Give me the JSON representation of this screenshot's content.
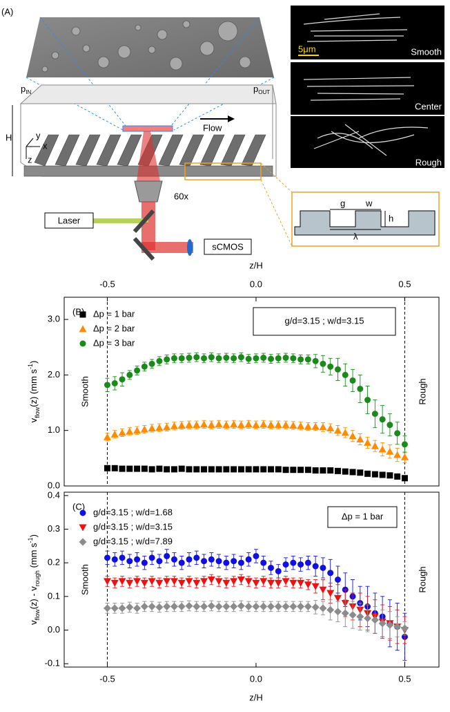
{
  "diagram": {
    "panel": "(A)",
    "p_in": {
      "main": "p",
      "sub": "IN"
    },
    "p_out": {
      "main": "p",
      "sub": "OUT"
    },
    "height": "H",
    "axes": {
      "y": "y",
      "x": "x",
      "z": "z"
    },
    "flow": "Flow",
    "objective": "60x",
    "laser": "Laser",
    "camera": "sCMOS",
    "scale": "5μm",
    "images": [
      "Smooth",
      "Center",
      "Rough"
    ],
    "inset": {
      "g": "g",
      "w": "w",
      "h": "h",
      "lambda": "λ"
    }
  },
  "chart_data": [
    {
      "type": "scatter",
      "panel": "(B)",
      "xlabel": "z/H",
      "xaxis_position": "top",
      "ylabel": [
        {
          "text": "v"
        },
        {
          "text": "flow",
          "sub": true
        },
        {
          "text": "(z)   (mm s"
        },
        {
          "text": "-1",
          "sup": true
        },
        {
          "text": ")"
        }
      ],
      "xlim": [
        -0.645,
        0.615
      ],
      "xticks": [
        -0.5,
        {
          "value": 0,
          "label": "0.0"
        },
        0.5
      ],
      "ylim": [
        0,
        3.4
      ],
      "yticks": [
        {
          "value": 0,
          "label": "0.0"
        },
        {
          "value": 1,
          "label": "1.0"
        },
        {
          "value": 2,
          "label": "2.0"
        },
        {
          "value": 3,
          "label": "3.0"
        }
      ],
      "vlines": [
        -0.5,
        0.5
      ],
      "annotations": [
        "Smooth",
        "Rough"
      ],
      "legend_box": "g/d=3.15 ; w/d=3.15",
      "x": [
        -0.5,
        -0.475,
        -0.45,
        -0.425,
        -0.4,
        -0.375,
        -0.35,
        -0.325,
        -0.3,
        -0.275,
        -0.25,
        -0.225,
        -0.2,
        -0.175,
        -0.15,
        -0.125,
        -0.1,
        -0.075,
        -0.05,
        -0.025,
        0,
        0.025,
        0.05,
        0.075,
        0.1,
        0.125,
        0.15,
        0.175,
        0.2,
        0.225,
        0.25,
        0.275,
        0.3,
        0.325,
        0.35,
        0.375,
        0.4,
        0.425,
        0.45,
        0.475,
        0.5
      ],
      "series": [
        {
          "name": "Δp = 1 bar",
          "color": "#000000",
          "marker": "square",
          "values": [
            0.32,
            0.32,
            0.31,
            0.31,
            0.31,
            0.31,
            0.3,
            0.31,
            0.3,
            0.3,
            0.31,
            0.3,
            0.3,
            0.3,
            0.3,
            0.3,
            0.3,
            0.3,
            0.3,
            0.3,
            0.3,
            0.3,
            0.3,
            0.3,
            0.29,
            0.29,
            0.29,
            0.29,
            0.28,
            0.28,
            0.28,
            0.27,
            0.26,
            0.25,
            0.24,
            0.22,
            0.21,
            0.2,
            0.19,
            0.17,
            0.14
          ]
        },
        {
          "name": "Δp = 2 bar",
          "color": "#ff8c00",
          "marker": "triangle-up",
          "values": [
            0.88,
            0.93,
            0.96,
            0.98,
            1.0,
            1.02,
            1.04,
            1.05,
            1.06,
            1.08,
            1.09,
            1.1,
            1.1,
            1.11,
            1.1,
            1.11,
            1.1,
            1.11,
            1.1,
            1.11,
            1.1,
            1.11,
            1.1,
            1.1,
            1.1,
            1.09,
            1.08,
            1.07,
            1.07,
            1.06,
            1.04,
            1.0,
            0.96,
            0.9,
            0.84,
            0.78,
            0.72,
            0.66,
            0.62,
            0.56,
            0.52
          ],
          "errors": [
            0.07,
            0.07,
            0.07,
            0.07,
            0.07,
            0.07,
            0.07,
            0.07,
            0.07,
            0.07,
            0.07,
            0.07,
            0.07,
            0.07,
            0.07,
            0.07,
            0.07,
            0.07,
            0.07,
            0.07,
            0.07,
            0.07,
            0.07,
            0.07,
            0.07,
            0.07,
            0.07,
            0.07,
            0.07,
            0.08,
            0.08,
            0.09,
            0.09,
            0.1,
            0.1,
            0.1,
            0.1,
            0.12,
            0.12,
            0.12,
            0.1
          ]
        },
        {
          "name": "Δp = 3 bar",
          "color": "#1a8a1a",
          "marker": "circle",
          "values": [
            1.82,
            1.85,
            1.92,
            2.0,
            2.08,
            2.15,
            2.2,
            2.25,
            2.28,
            2.3,
            2.3,
            2.31,
            2.32,
            2.3,
            2.32,
            2.3,
            2.31,
            2.3,
            2.32,
            2.29,
            2.3,
            2.31,
            2.29,
            2.3,
            2.31,
            2.3,
            2.28,
            2.28,
            2.25,
            2.2,
            2.15,
            2.1,
            2.0,
            1.9,
            1.75,
            1.55,
            1.3,
            1.2,
            1.1,
            0.95,
            0.75
          ],
          "errors": [
            0.12,
            0.12,
            0.12,
            0.08,
            0.08,
            0.08,
            0.08,
            0.08,
            0.08,
            0.08,
            0.08,
            0.08,
            0.08,
            0.08,
            0.08,
            0.08,
            0.08,
            0.08,
            0.08,
            0.08,
            0.08,
            0.08,
            0.08,
            0.08,
            0.08,
            0.08,
            0.08,
            0.08,
            0.12,
            0.15,
            0.15,
            0.2,
            0.2,
            0.2,
            0.25,
            0.25,
            0.25,
            0.25,
            0.2,
            0.2,
            0.15
          ]
        }
      ]
    },
    {
      "type": "scatter",
      "panel": "(C)",
      "xlabel": "z/H",
      "xaxis_position": "bottom",
      "ylabel": [
        {
          "text": "v"
        },
        {
          "text": "flow",
          "sub": true
        },
        {
          "text": "(z) - v"
        },
        {
          "text": "rough",
          "sub": true
        },
        {
          "text": " (mm s"
        },
        {
          "text": "-1",
          "sup": true
        },
        {
          "text": ")"
        }
      ],
      "xlim": [
        -0.645,
        0.615
      ],
      "xticks": [
        -0.5,
        {
          "value": 0,
          "label": "0.0"
        },
        0.5
      ],
      "ylim": [
        -0.11,
        0.41
      ],
      "yticks": [
        -0.1,
        {
          "value": 0,
          "label": "0.0"
        },
        0.1,
        0.2,
        0.3,
        0.4
      ],
      "vlines": [
        -0.5,
        0.5
      ],
      "annotations": [
        "Smooth",
        "Rough"
      ],
      "legend_box": "Δp = 1 bar",
      "x": [
        -0.5,
        -0.475,
        -0.45,
        -0.425,
        -0.4,
        -0.375,
        -0.35,
        -0.325,
        -0.3,
        -0.275,
        -0.25,
        -0.225,
        -0.2,
        -0.175,
        -0.15,
        -0.125,
        -0.1,
        -0.075,
        -0.05,
        -0.025,
        0,
        0.025,
        0.05,
        0.075,
        0.1,
        0.125,
        0.15,
        0.175,
        0.2,
        0.225,
        0.25,
        0.275,
        0.3,
        0.325,
        0.35,
        0.375,
        0.4,
        0.425,
        0.45,
        0.475,
        0.5
      ],
      "series": [
        {
          "name": "g/d=3.15 ; w/d=1.68",
          "color": "#1010e0",
          "marker": "circle",
          "values": [
            0.215,
            0.21,
            0.215,
            0.205,
            0.21,
            0.2,
            0.215,
            0.205,
            0.22,
            0.21,
            0.2,
            0.21,
            0.215,
            0.205,
            0.21,
            0.205,
            0.2,
            0.205,
            0.2,
            0.21,
            0.22,
            0.2,
            0.185,
            0.175,
            0.195,
            0.2,
            0.195,
            0.2,
            0.19,
            0.185,
            0.17,
            0.15,
            0.12,
            0.1,
            0.08,
            0.07,
            0.05,
            0.04,
            0.02,
            0.01,
            -0.02
          ],
          "errors": [
            0.02,
            0.02,
            0.02,
            0.02,
            0.02,
            0.02,
            0.02,
            0.02,
            0.02,
            0.02,
            0.02,
            0.02,
            0.02,
            0.02,
            0.02,
            0.02,
            0.02,
            0.02,
            0.02,
            0.02,
            0.02,
            0.02,
            0.02,
            0.02,
            0.02,
            0.02,
            0.02,
            0.02,
            0.03,
            0.03,
            0.04,
            0.04,
            0.05,
            0.05,
            0.05,
            0.06,
            0.06,
            0.06,
            0.07,
            0.07,
            0.07
          ]
        },
        {
          "name": "g/d=3.15 ; w/d=3.15",
          "color": "#ee1111",
          "marker": "triangle-down",
          "values": [
            0.145,
            0.14,
            0.145,
            0.14,
            0.145,
            0.14,
            0.145,
            0.14,
            0.145,
            0.145,
            0.14,
            0.145,
            0.14,
            0.145,
            0.15,
            0.145,
            0.14,
            0.145,
            0.15,
            0.145,
            0.14,
            0.145,
            0.14,
            0.14,
            0.145,
            0.14,
            0.14,
            0.135,
            0.13,
            0.12,
            0.11,
            0.095,
            0.08,
            0.07,
            0.06,
            0.05,
            0.04,
            0.025,
            0.02,
            0.01,
            0.0
          ],
          "errors": [
            0.015,
            0.015,
            0.015,
            0.015,
            0.015,
            0.015,
            0.015,
            0.015,
            0.015,
            0.015,
            0.015,
            0.015,
            0.015,
            0.015,
            0.015,
            0.015,
            0.015,
            0.015,
            0.015,
            0.015,
            0.015,
            0.015,
            0.015,
            0.015,
            0.015,
            0.015,
            0.015,
            0.015,
            0.02,
            0.03,
            0.03,
            0.04,
            0.04,
            0.04,
            0.05,
            0.05,
            0.05,
            0.05,
            0.05,
            0.05,
            0.04
          ]
        },
        {
          "name": "g/d=3.15 ; w/d=7.89",
          "color": "#8c8c8c",
          "marker": "diamond",
          "values": [
            0.065,
            0.065,
            0.065,
            0.068,
            0.065,
            0.07,
            0.07,
            0.068,
            0.07,
            0.07,
            0.07,
            0.072,
            0.07,
            0.07,
            0.072,
            0.07,
            0.07,
            0.07,
            0.072,
            0.07,
            0.07,
            0.07,
            0.07,
            0.07,
            0.07,
            0.07,
            0.07,
            0.07,
            0.068,
            0.065,
            0.06,
            0.055,
            0.05,
            0.045,
            0.04,
            0.035,
            0.03,
            0.02,
            0.015,
            0.01,
            0.005
          ],
          "errors": [
            0.015,
            0.015,
            0.015,
            0.015,
            0.015,
            0.015,
            0.015,
            0.015,
            0.015,
            0.015,
            0.015,
            0.015,
            0.015,
            0.015,
            0.015,
            0.015,
            0.015,
            0.015,
            0.015,
            0.015,
            0.015,
            0.015,
            0.015,
            0.015,
            0.015,
            0.015,
            0.015,
            0.015,
            0.02,
            0.02,
            0.03,
            0.03,
            0.04,
            0.04,
            0.04,
            0.04,
            0.04,
            0.04,
            0.04,
            0.03,
            0.02
          ]
        }
      ]
    }
  ]
}
